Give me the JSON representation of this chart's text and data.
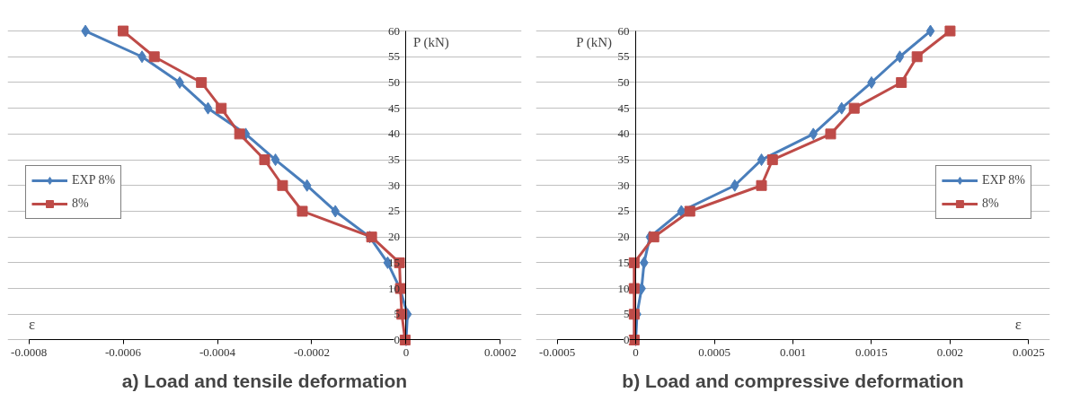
{
  "chart_data": [
    {
      "type": "line",
      "title": "a) Load and tensile deformation",
      "xlabel": "ε",
      "ylabel": "P (kN)",
      "xlim": [
        -0.0008,
        0.0002
      ],
      "xticks": [
        -0.0008,
        -0.0006,
        -0.0004,
        -0.0002,
        0,
        0.0002
      ],
      "ylim": [
        0,
        60
      ],
      "yticks": [
        0,
        5,
        10,
        15,
        20,
        25,
        30,
        35,
        40,
        45,
        50,
        55,
        60
      ],
      "grid": "y",
      "legend": "left",
      "series": [
        {
          "name": "EXP 8%",
          "color": "#4a7ebb",
          "marker": "diamond",
          "x": [
            -0.00068,
            -0.00056,
            -0.00048,
            -0.00042,
            -0.00034,
            -0.000277,
            -0.00021,
            -0.00015,
            -7.7e-05,
            -3.9e-05,
            -1.3e-05,
            3e-06,
            0
          ],
          "values": [
            60,
            55,
            50,
            45,
            40,
            35,
            30,
            25,
            20,
            15,
            10,
            5,
            0
          ]
        },
        {
          "name": "8%",
          "color": "#be4b48",
          "marker": "square",
          "x": [
            -0.0006,
            -0.000534,
            -0.000434,
            -0.000392,
            -0.000353,
            -0.0003,
            -0.000262,
            -0.00022,
            -7.3e-05,
            -1.4e-05,
            -1.2e-05,
            -9e-06,
            -2e-06
          ],
          "values": [
            60,
            55,
            50,
            45,
            40,
            35,
            30,
            25,
            20,
            15,
            10,
            5,
            0
          ]
        }
      ]
    },
    {
      "type": "line",
      "title": "b) Load and compressive deformation",
      "xlabel": "ε",
      "ylabel": "P (kN)",
      "xlim": [
        -0.0005,
        0.0025
      ],
      "xticks": [
        -0.0005,
        0,
        0.0005,
        0.001,
        0.0015,
        0.002,
        0.0025
      ],
      "ylim": [
        0,
        60
      ],
      "yticks": [
        0,
        5,
        10,
        15,
        20,
        25,
        30,
        35,
        40,
        45,
        50,
        55,
        60
      ],
      "grid": "y",
      "legend": "right",
      "series": [
        {
          "name": "EXP 8%",
          "color": "#4a7ebb",
          "marker": "diamond",
          "x": [
            0.001875,
            0.00168,
            0.0015,
            0.00131,
            0.00113,
            0.0008,
            0.00063,
            0.00029,
            9e-05,
            5.3e-05,
            3.7e-05,
            8e-06,
            0
          ],
          "values": [
            60,
            55,
            50,
            45,
            40,
            35,
            30,
            25,
            20,
            15,
            10,
            5,
            0
          ]
        },
        {
          "name": "8%",
          "color": "#be4b48",
          "marker": "square",
          "x": [
            0.002,
            0.00179,
            0.00169,
            0.00139,
            0.00124,
            0.00087,
            0.0008,
            0.000344,
            0.000115,
            -1e-05,
            -1e-05,
            -1e-05,
            -1e-05
          ],
          "values": [
            60,
            55,
            50,
            45,
            40,
            35,
            30,
            25,
            20,
            15,
            10,
            5,
            0
          ]
        }
      ]
    }
  ]
}
